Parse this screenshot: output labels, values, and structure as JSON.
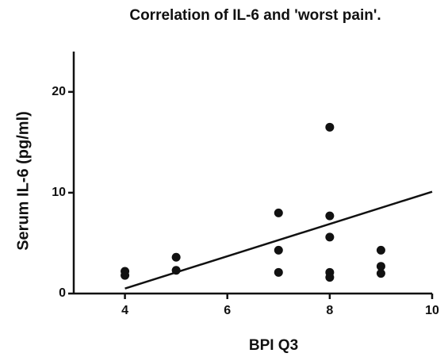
{
  "chart_data": {
    "type": "scatter",
    "title": "Correlation of IL-6 and 'worst pain'.",
    "x_label": "BPI Q3",
    "y_label": "Serum IL-6 (pg/ml)",
    "series": [
      {
        "color": "#111111",
        "x": [
          4,
          4,
          5,
          5,
          7,
          7,
          7,
          8,
          8,
          8,
          8,
          8,
          9,
          9,
          9
        ],
        "values": [
          2.2,
          1.8,
          3.6,
          2.3,
          8.0,
          4.3,
          2.1,
          16.5,
          7.7,
          5.6,
          2.1,
          1.6,
          4.3,
          2.7,
          2.0
        ]
      }
    ],
    "trend_line": {
      "x": [
        4,
        10
      ],
      "values": [
        0.5,
        10.1
      ]
    },
    "xlim": [
      3,
      10
    ],
    "xticks": [
      4,
      6,
      8,
      10
    ],
    "ylim": [
      0,
      24
    ],
    "yticks": [
      0,
      10,
      20
    ],
    "grid": false
  }
}
